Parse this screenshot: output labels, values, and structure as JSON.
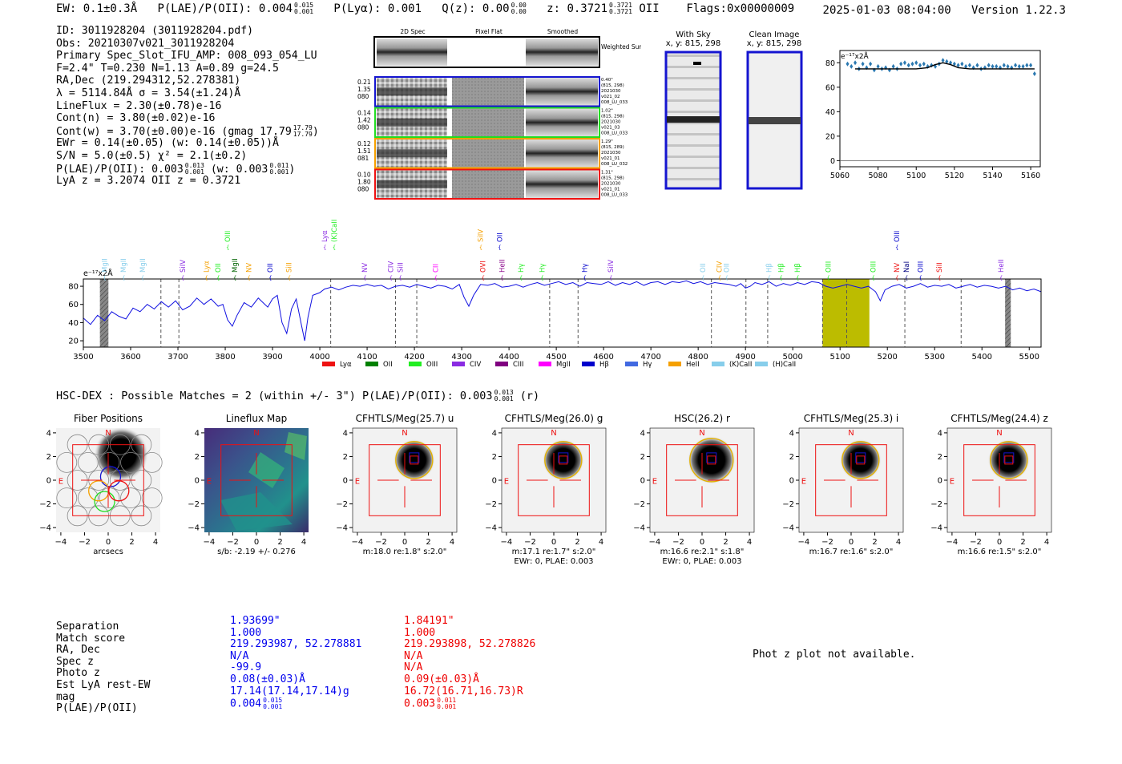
{
  "header": {
    "ew": "EW: 0.1±0.3Å",
    "plae_label": "P(LAE)/P(OII): 0.004",
    "plae_hi": "0.015",
    "plae_lo": "0.001",
    "plya": "P(Lyα): 0.001",
    "qz_label": "Q(z): 0.00",
    "qz_hi": "0.00",
    "qz_lo": "0.00",
    "z_label": "z: 0.3721",
    "z_hi": "0.3721",
    "z_lo": "0.3721",
    "z_line": "OII",
    "flags": "Flags:0x00000009",
    "datetime": "2025-01-03 08:04:00",
    "version": "Version 1.22.3"
  },
  "info": {
    "id": "ID: 3011928204 (3011928204.pdf)",
    "obs": "Obs: 20210307v021_3011928204",
    "primary": "Primary Spec_Slot_IFU_AMP: 008_093_054_LU",
    "fit": "F=2.4\"  T=0.230  N=1.13  A=0.89  g=24.5",
    "radec": "RA,Dec (219.294312,52.278381)",
    "lambda": "λ = 5114.84Å  σ = 3.54(±1.24)Å",
    "lineflux": "LineFlux = 2.30(±0.78)e-16",
    "contn": "Cont(n) = 3.80(±0.02)e-16",
    "contw": "Cont(w) = 3.70(±0.00)e-16 (gmag 17.79",
    "contw_hi": "17.79",
    "contw_lo": "17.79",
    "ewr": "EWr = 0.14(±0.05) (w: 0.14(±0.05))Å",
    "sn": "S/N = 5.0(±0.5)  χ² = 2.1(±0.2)",
    "plae": "P(LAE)/P(OII): 0.003",
    "plae_hi": "0.013",
    "plae_lo": "0.001",
    "plae_w": "(w: 0.003",
    "plae_w_hi": "0.011",
    "plae_w_lo": "0.001",
    "lya_z": "LyA z = 3.2074  OII z = 0.3721"
  },
  "spec2d": {
    "col_labels": [
      "2D Spec",
      "Pixel Flat",
      "Smoothed"
    ],
    "weighted_sum": "Weighted Sum",
    "rows": [
      {
        "l1": "0.21",
        "l2": "1.35",
        "l3": "080",
        "r1": "0.40\"",
        "r2": "(815, 298)",
        "r3": "2021030",
        "r4": "v021_02",
        "r5": "008_LU_033",
        "color": "#1515d0"
      },
      {
        "l1": "0.14",
        "l2": "1.42",
        "l3": "080",
        "r1": "1.02\"",
        "r2": "(815, 298)",
        "r3": "2021030",
        "r4": "v021_03",
        "r5": "008_LU_033",
        "color": "#22dd22"
      },
      {
        "l1": "0.12",
        "l2": "1.51",
        "l3": "081",
        "r1": "1.29\"",
        "r2": "(815, 289)",
        "r3": "2021030",
        "r4": "v021_01",
        "r5": "008_LU_032",
        "color": "#f5a000"
      },
      {
        "l1": "0.10",
        "l2": "1.80",
        "l3": "080",
        "r1": "1.31\"",
        "r2": "(815, 298)",
        "r3": "2021030",
        "r4": "v021_01",
        "r5": "008_LU_033",
        "color": "#ee1111"
      }
    ]
  },
  "sky": {
    "with_sky": "With Sky",
    "with_sky_xy": "x, y: 815, 298",
    "clean": "Clean Image",
    "clean_xy": "x, y: 815, 298"
  },
  "zoom_chart": {
    "type": "scatter",
    "yunit": "e⁻¹⁷x2Å",
    "xlim": [
      5060,
      5165
    ],
    "ylim": [
      -5,
      90
    ],
    "xticks": [
      "5060",
      "5080",
      "5100",
      "5120",
      "5140",
      "5160"
    ],
    "yticks": [
      "0",
      "20",
      "40",
      "60",
      "80"
    ],
    "points": [
      [
        5064,
        79
      ],
      [
        5066,
        77
      ],
      [
        5068,
        80
      ],
      [
        5070,
        75
      ],
      [
        5072,
        79
      ],
      [
        5074,
        76
      ],
      [
        5076,
        79
      ],
      [
        5078,
        74
      ],
      [
        5080,
        77
      ],
      [
        5082,
        75
      ],
      [
        5084,
        76
      ],
      [
        5086,
        74
      ],
      [
        5088,
        77
      ],
      [
        5090,
        75
      ],
      [
        5092,
        79
      ],
      [
        5094,
        80
      ],
      [
        5096,
        78
      ],
      [
        5098,
        79
      ],
      [
        5100,
        80
      ],
      [
        5102,
        78
      ],
      [
        5104,
        79
      ],
      [
        5106,
        77
      ],
      [
        5108,
        78
      ],
      [
        5110,
        77
      ],
      [
        5112,
        79
      ],
      [
        5114,
        82
      ],
      [
        5116,
        81
      ],
      [
        5118,
        80
      ],
      [
        5120,
        79
      ],
      [
        5122,
        78
      ],
      [
        5124,
        79
      ],
      [
        5126,
        77
      ],
      [
        5128,
        78
      ],
      [
        5130,
        76
      ],
      [
        5132,
        78
      ],
      [
        5134,
        75
      ],
      [
        5136,
        76
      ],
      [
        5138,
        78
      ],
      [
        5140,
        77
      ],
      [
        5142,
        77
      ],
      [
        5144,
        76
      ],
      [
        5146,
        78
      ],
      [
        5148,
        77
      ],
      [
        5150,
        76
      ],
      [
        5152,
        78
      ],
      [
        5154,
        77
      ],
      [
        5156,
        77
      ],
      [
        5158,
        78
      ],
      [
        5160,
        78
      ],
      [
        5162,
        71
      ]
    ],
    "fit": [
      [
        5068,
        75
      ],
      [
        5100,
        75
      ],
      [
        5106,
        76
      ],
      [
        5110,
        78.5
      ],
      [
        5114,
        80
      ],
      [
        5118,
        78.5
      ],
      [
        5122,
        76
      ],
      [
        5128,
        75
      ],
      [
        5162,
        75
      ]
    ]
  },
  "chart_data": {
    "type": "line",
    "title": "",
    "yunit": "e⁻¹⁷x2Å",
    "xlim": [
      3500,
      5525
    ],
    "ylim": [
      13,
      88
    ],
    "xticks": [
      "3500",
      "3600",
      "3700",
      "3800",
      "3900",
      "4000",
      "4100",
      "4200",
      "4300",
      "4400",
      "4500",
      "4600",
      "4700",
      "4800",
      "4900",
      "5000",
      "5100",
      "5200",
      "5300",
      "5400",
      "5500"
    ],
    "yticks": [
      "20",
      "40",
      "60",
      "80"
    ],
    "series_points": [
      [
        3500,
        45
      ],
      [
        3515,
        38
      ],
      [
        3530,
        48
      ],
      [
        3545,
        42
      ],
      [
        3560,
        52
      ],
      [
        3575,
        47
      ],
      [
        3590,
        44
      ],
      [
        3605,
        56
      ],
      [
        3620,
        52
      ],
      [
        3635,
        60
      ],
      [
        3650,
        55
      ],
      [
        3665,
        63
      ],
      [
        3680,
        57
      ],
      [
        3695,
        64
      ],
      [
        3710,
        54
      ],
      [
        3725,
        58
      ],
      [
        3740,
        67
      ],
      [
        3755,
        60
      ],
      [
        3770,
        66
      ],
      [
        3785,
        58
      ],
      [
        3795,
        60
      ],
      [
        3805,
        43
      ],
      [
        3815,
        36
      ],
      [
        3825,
        48
      ],
      [
        3840,
        62
      ],
      [
        3855,
        57
      ],
      [
        3870,
        67
      ],
      [
        3880,
        62
      ],
      [
        3890,
        57
      ],
      [
        3900,
        66
      ],
      [
        3910,
        70
      ],
      [
        3920,
        40
      ],
      [
        3930,
        28
      ],
      [
        3940,
        55
      ],
      [
        3950,
        66
      ],
      [
        3960,
        40
      ],
      [
        3968,
        20
      ],
      [
        3975,
        46
      ],
      [
        3985,
        70
      ],
      [
        4000,
        73
      ],
      [
        4010,
        77
      ],
      [
        4025,
        79
      ],
      [
        4040,
        76
      ],
      [
        4055,
        79
      ],
      [
        4070,
        81
      ],
      [
        4085,
        80
      ],
      [
        4100,
        82
      ],
      [
        4115,
        80
      ],
      [
        4130,
        81
      ],
      [
        4145,
        77
      ],
      [
        4160,
        80
      ],
      [
        4175,
        81
      ],
      [
        4190,
        79
      ],
      [
        4205,
        82
      ],
      [
        4220,
        80
      ],
      [
        4235,
        78
      ],
      [
        4250,
        81
      ],
      [
        4265,
        80
      ],
      [
        4280,
        77
      ],
      [
        4295,
        82
      ],
      [
        4305,
        68
      ],
      [
        4315,
        58
      ],
      [
        4325,
        70
      ],
      [
        4340,
        82
      ],
      [
        4355,
        81
      ],
      [
        4370,
        83
      ],
      [
        4385,
        79
      ],
      [
        4400,
        80
      ],
      [
        4415,
        82
      ],
      [
        4430,
        79
      ],
      [
        4445,
        82
      ],
      [
        4460,
        84
      ],
      [
        4475,
        81
      ],
      [
        4490,
        83
      ],
      [
        4505,
        85
      ],
      [
        4520,
        82
      ],
      [
        4535,
        84
      ],
      [
        4550,
        80
      ],
      [
        4565,
        84
      ],
      [
        4580,
        83
      ],
      [
        4595,
        82
      ],
      [
        4610,
        85
      ],
      [
        4625,
        81
      ],
      [
        4640,
        84
      ],
      [
        4655,
        82
      ],
      [
        4670,
        85
      ],
      [
        4685,
        81
      ],
      [
        4700,
        84
      ],
      [
        4715,
        85
      ],
      [
        4730,
        82
      ],
      [
        4745,
        85
      ],
      [
        4760,
        84
      ],
      [
        4775,
        86
      ],
      [
        4790,
        83
      ],
      [
        4805,
        85
      ],
      [
        4820,
        82
      ],
      [
        4835,
        84
      ],
      [
        4850,
        83
      ],
      [
        4865,
        82
      ],
      [
        4880,
        80
      ],
      [
        4890,
        83
      ],
      [
        4900,
        78
      ],
      [
        4910,
        80
      ],
      [
        4920,
        84
      ],
      [
        4935,
        82
      ],
      [
        4950,
        85
      ],
      [
        4965,
        80
      ],
      [
        4980,
        83
      ],
      [
        4995,
        81
      ],
      [
        5010,
        84
      ],
      [
        5025,
        82
      ],
      [
        5040,
        85
      ],
      [
        5055,
        84
      ],
      [
        5070,
        80
      ],
      [
        5085,
        78
      ],
      [
        5100,
        80
      ],
      [
        5115,
        82
      ],
      [
        5130,
        80
      ],
      [
        5145,
        78
      ],
      [
        5160,
        80
      ],
      [
        5175,
        74
      ],
      [
        5185,
        64
      ],
      [
        5195,
        76
      ],
      [
        5210,
        80
      ],
      [
        5225,
        82
      ],
      [
        5240,
        78
      ],
      [
        5255,
        80
      ],
      [
        5270,
        83
      ],
      [
        5285,
        79
      ],
      [
        5300,
        81
      ],
      [
        5315,
        80
      ],
      [
        5330,
        82
      ],
      [
        5345,
        78
      ],
      [
        5360,
        80
      ],
      [
        5375,
        82
      ],
      [
        5390,
        79
      ],
      [
        5405,
        81
      ],
      [
        5420,
        80
      ],
      [
        5435,
        78
      ],
      [
        5450,
        80
      ],
      [
        5465,
        76
      ],
      [
        5480,
        78
      ],
      [
        5495,
        75
      ],
      [
        5510,
        77
      ],
      [
        5525,
        74
      ]
    ],
    "dashed_lines": [
      3664,
      3702,
      4023,
      4160,
      4205,
      4486,
      4546,
      4828,
      4901,
      4947,
      5063,
      5114,
      5237,
      5356
    ],
    "gray_bands": [
      [
        3535,
        3553
      ],
      [
        5449,
        5461
      ]
    ],
    "highlight_band": [
      5063,
      5162
    ],
    "line_labels": [
      {
        "x": 3545,
        "label": "MgII",
        "color": "#87ceeb",
        "row": 1
      },
      {
        "x": 3585,
        "label": "MgII",
        "color": "#87ceeb",
        "row": 1
      },
      {
        "x": 3625,
        "label": "MgII",
        "color": "#87ceeb",
        "row": 1
      },
      {
        "x": 3710,
        "label": "SiIV",
        "color": "#8a2be2",
        "row": 1
      },
      {
        "x": 3760,
        "label": "Lyα",
        "color": "#f5a000",
        "row": 1
      },
      {
        "x": 3785,
        "label": "OII",
        "color": "#22ee22",
        "row": 1
      },
      {
        "x": 3805,
        "label": "OIII",
        "color": "#22ee22",
        "row": 0
      },
      {
        "x": 3820,
        "label": "MgII",
        "color": "#006400",
        "row": 1
      },
      {
        "x": 3850,
        "label": "NV",
        "color": "#f5a000",
        "row": 1
      },
      {
        "x": 3895,
        "label": "OII",
        "color": "#0000cc",
        "row": 1
      },
      {
        "x": 3935,
        "label": "SiII",
        "color": "#f5a000",
        "row": 1
      },
      {
        "x": 4010,
        "label": "Lyα",
        "color": "#8a2be2",
        "row": 0
      },
      {
        "x": 4030,
        "label": "(K)CaII",
        "color": "#22ee22",
        "row": 0
      },
      {
        "x": 4095,
        "label": "NV",
        "color": "#8a2be2",
        "row": 1
      },
      {
        "x": 4150,
        "label": "CIV",
        "color": "#8a2be2",
        "row": 1
      },
      {
        "x": 4170,
        "label": "SiII",
        "color": "#8a2be2",
        "row": 1
      },
      {
        "x": 4245,
        "label": "CII",
        "color": "#ff00ff",
        "row": 1
      },
      {
        "x": 4340,
        "label": "SiIV",
        "color": "#f5a000",
        "row": 0
      },
      {
        "x": 4345,
        "label": "OVI",
        "color": "#ee1111",
        "row": 1
      },
      {
        "x": 4380,
        "label": "OII",
        "color": "#0000cc",
        "row": 0
      },
      {
        "x": 4385,
        "label": "HeII",
        "color": "#880088",
        "row": 1
      },
      {
        "x": 4425,
        "label": "Hγ",
        "color": "#22ee22",
        "row": 1
      },
      {
        "x": 4470,
        "label": "Hγ",
        "color": "#22ee22",
        "row": 1
      },
      {
        "x": 4560,
        "label": "Hγ",
        "color": "#0000cc",
        "row": 1
      },
      {
        "x": 4615,
        "label": "SiIV",
        "color": "#8a2be2",
        "row": 1
      },
      {
        "x": 4810,
        "label": "OII",
        "color": "#87ceeb",
        "row": 1
      },
      {
        "x": 4845,
        "label": "CIV",
        "color": "#f5a000",
        "row": 1
      },
      {
        "x": 4860,
        "label": "OII",
        "color": "#87ceeb",
        "row": 1
      },
      {
        "x": 4950,
        "label": "Hβ",
        "color": "#87ceeb",
        "row": 1
      },
      {
        "x": 4975,
        "label": "Hβ",
        "color": "#22ee22",
        "row": 1
      },
      {
        "x": 5010,
        "label": "Hβ",
        "color": "#22ee22",
        "row": 1
      },
      {
        "x": 5075,
        "label": "OIII",
        "color": "#22ee22",
        "row": 1
      },
      {
        "x": 5170,
        "label": "OIII",
        "color": "#22ee22",
        "row": 1
      },
      {
        "x": 5220,
        "label": "OIII",
        "color": "#0000cc",
        "row": 0
      },
      {
        "x": 5220,
        "label": "NV",
        "color": "#ee1111",
        "row": 1
      },
      {
        "x": 5240,
        "label": "NaI",
        "color": "#000080",
        "row": 1
      },
      {
        "x": 5270,
        "label": "OIII",
        "color": "#0000cc",
        "row": 1
      },
      {
        "x": 5310,
        "label": "SiII",
        "color": "#ee1111",
        "row": 1
      },
      {
        "x": 5440,
        "label": "HeII",
        "color": "#8a2be2",
        "row": 1
      }
    ],
    "legend": [
      {
        "label": "Lyα",
        "color": "#ee1111"
      },
      {
        "label": "OII",
        "color": "#008000"
      },
      {
        "label": "OIII",
        "color": "#22ee22"
      },
      {
        "label": "CIV",
        "color": "#8a2be2"
      },
      {
        "label": "CIII",
        "color": "#800080"
      },
      {
        "label": "MgII",
        "color": "#ff00ff"
      },
      {
        "label": "Hβ",
        "color": "#0000cc"
      },
      {
        "label": "Hγ",
        "color": "#4169e1"
      },
      {
        "label": "HeII",
        "color": "#f5a000"
      },
      {
        "label": "(K)CaII",
        "color": "#87ceeb"
      },
      {
        "label": "(H)CaII",
        "color": "#87ceeb"
      }
    ]
  },
  "hsc": {
    "label": "HSC-DEX : Possible Matches = 2 (within +/- 3\")  P(LAE)/P(OII): 0.003",
    "plae_hi": "0.013",
    "plae_lo": "0.001",
    "suffix": "(r)"
  },
  "cutouts": {
    "xticks": [
      "−4",
      "−2",
      "0",
      "2",
      "4"
    ],
    "yticks": [
      "4",
      "2",
      "0",
      "−2",
      "−4"
    ],
    "n_label": "N",
    "e_label": "E",
    "panels": [
      {
        "title": "Fiber Positions",
        "sub1": "arcsecs",
        "sub2": ""
      },
      {
        "title": "Lineflux Map",
        "sub1": "s/b: -2.19 +/- 0.276",
        "sub2": ""
      },
      {
        "title": "CFHTLS/Meg(25.7) u",
        "sub1": "m:18.0  re:1.8\"  s:2.0\"",
        "sub2": ""
      },
      {
        "title": "CFHTLS/Meg(26.0) g",
        "sub1": "m:17.1  re:1.7\"  s:2.0\"",
        "sub2": "EWr: 0, PLAE: 0.003"
      },
      {
        "title": "HSC(26.2) r",
        "sub1": "m:16.6  re:2.1\"  s:1.8\"",
        "sub2": "EWr: 0, PLAE: 0.003"
      },
      {
        "title": "CFHTLS/Meg(25.3) i",
        "sub1": "m:16.7  re:1.6\"  s:2.0\"",
        "sub2": ""
      },
      {
        "title": "CFHTLS/Meg(24.4) z",
        "sub1": "m:16.6  re:1.5\"  s:2.0\"",
        "sub2": ""
      }
    ]
  },
  "matches": {
    "labels": [
      "Separation",
      "Match score",
      "RA, Dec",
      "Spec z",
      "Photo z",
      "Est LyA rest-EW",
      "mag",
      "P(LAE)/P(OII)"
    ],
    "blue": [
      "1.93699\"",
      "1.000",
      "219.293987, 52.278881",
      "N/A",
      "-99.9",
      "0.08(±0.03)Å",
      "17.14(17.14,17.14)g",
      "0.004"
    ],
    "blue_plae_hi": "0.015",
    "blue_plae_lo": "0.001",
    "red": [
      "1.84191\"",
      "1.000",
      "219.293898, 52.278826",
      "N/A",
      "N/A",
      "0.09(±0.03)Å",
      "16.72(16.71,16.73)R",
      "0.003"
    ],
    "red_plae_hi": "0.011",
    "red_plae_lo": "0.001",
    "photz_msg": "Phot z plot not available."
  }
}
